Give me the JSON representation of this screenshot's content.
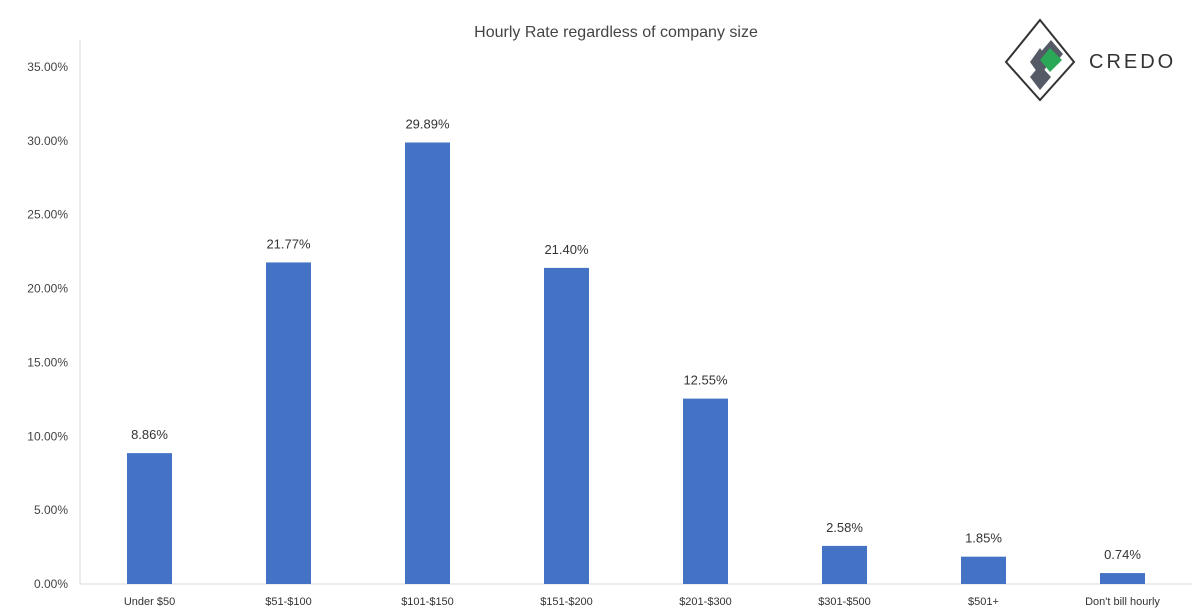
{
  "chart_data": {
    "type": "bar",
    "title": "Hourly Rate regardless of company size",
    "xlabel": "",
    "ylabel": "",
    "categories": [
      "Under $50",
      "$51-$100",
      "$101-$150",
      "$151-$200",
      "$201-$300",
      "$301-$500",
      "$501+",
      "Don't bill hourly"
    ],
    "values": [
      8.86,
      21.77,
      29.89,
      21.4,
      12.55,
      2.58,
      1.85,
      0.74
    ],
    "data_labels": [
      "8.86%",
      "21.77%",
      "29.89%",
      "21.40%",
      "12.55%",
      "2.58%",
      "1.85%",
      "0.74%"
    ],
    "y_ticks": [
      0,
      5,
      10,
      15,
      20,
      25,
      30,
      35
    ],
    "y_tick_labels": [
      "0.00%",
      "5.00%",
      "10.00%",
      "15.00%",
      "20.00%",
      "25.00%",
      "30.00%",
      "35.00%"
    ],
    "ylim": [
      0,
      35
    ],
    "grid": false,
    "legend": "none",
    "bar_color": "#4472C4"
  },
  "logo": {
    "text": "CREDO",
    "colors": {
      "primary": "#555b66",
      "accent": "#2aa857",
      "outline": "#333333"
    }
  }
}
